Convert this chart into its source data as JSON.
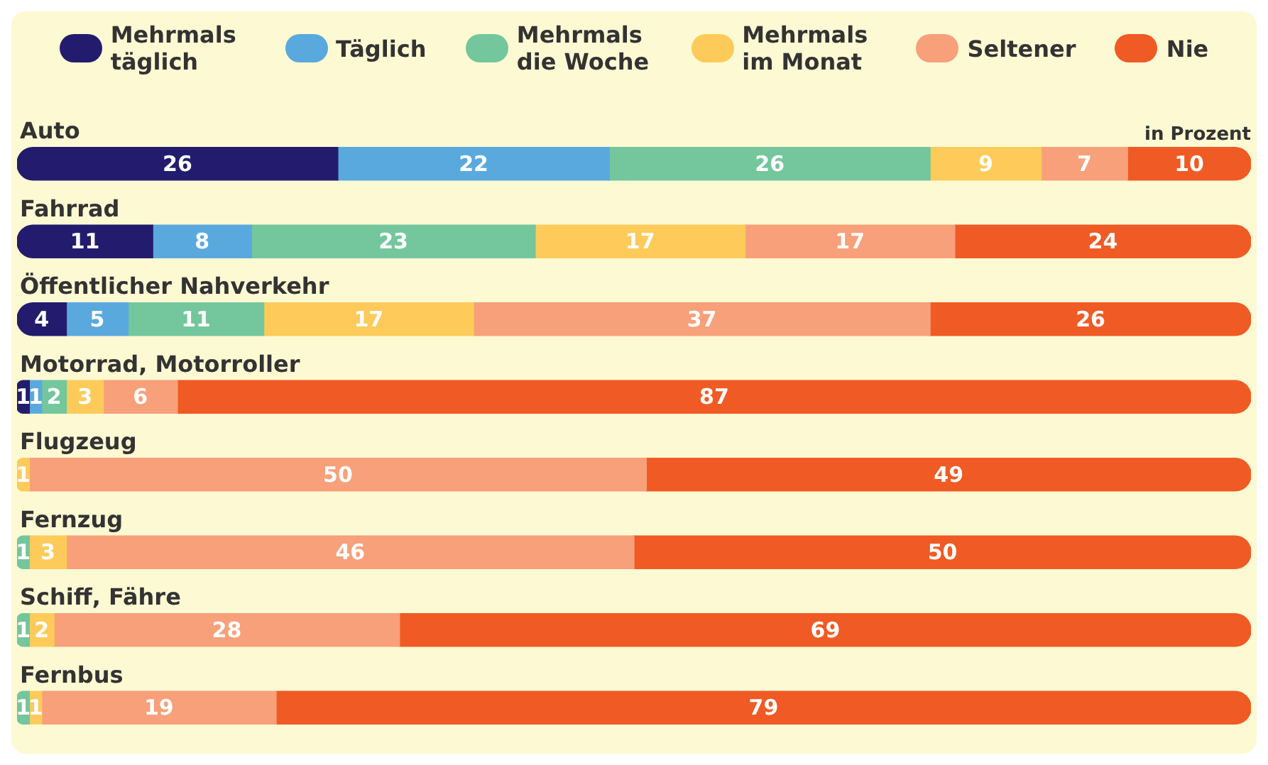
{
  "chart_data": {
    "type": "bar",
    "orientation": "horizontal",
    "stacked": true,
    "data_labels": true,
    "legend": "top",
    "xlim": [
      0,
      100
    ],
    "annotations": [
      "in Prozent"
    ],
    "categories": [
      "Auto",
      "Fahrrad",
      "Öffentlicher Nahverkehr",
      "Motorrad, Motorroller",
      "Flugzeug",
      "Fernzug",
      "Schiff, Fähre",
      "Fernbus"
    ],
    "series": [
      {
        "name": "Mehrmals täglich",
        "color": "#231c6e",
        "values": [
          26,
          11,
          4,
          1,
          null,
          null,
          null,
          null
        ]
      },
      {
        "name": "Täglich",
        "color": "#5aa9de",
        "values": [
          22,
          8,
          5,
          1,
          null,
          null,
          null,
          null
        ]
      },
      {
        "name": "Mehrmals die Woche",
        "color": "#74c69d",
        "values": [
          26,
          23,
          11,
          2,
          null,
          1,
          1,
          1
        ]
      },
      {
        "name": "Mehrmals im Monat",
        "color": "#fecb5a",
        "values": [
          9,
          17,
          17,
          3,
          1,
          3,
          2,
          1
        ]
      },
      {
        "name": "Seltener",
        "color": "#f7a07a",
        "values": [
          7,
          17,
          37,
          6,
          50,
          46,
          28,
          19
        ]
      },
      {
        "name": "Nie",
        "color": "#f05a24",
        "values": [
          10,
          24,
          26,
          87,
          49,
          50,
          69,
          79
        ]
      }
    ]
  }
}
